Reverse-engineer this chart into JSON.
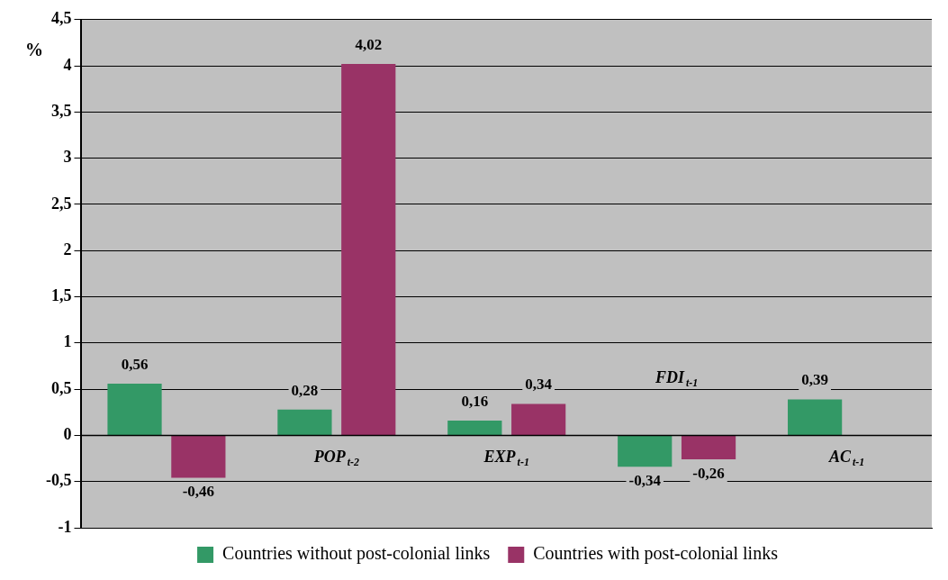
{
  "chart_data": {
    "type": "bar",
    "ylabel": "%",
    "categories": [
      null,
      "POP$_{t-2}$",
      "EXP$_{t-1}$",
      "FDI$_{t-1}$",
      "AC$_{t-1}$"
    ],
    "series": [
      {
        "name": "Countries without post-colonial links",
        "color": "#339966",
        "values": [
          0.56,
          0.28,
          0.16,
          -0.34,
          0.39
        ],
        "value_labels": [
          "0,56",
          "0,28",
          "0,16",
          "-0,34",
          "0,39"
        ]
      },
      {
        "name": "Countries with post-colonial links",
        "color": "#993366",
        "values": [
          -0.46,
          4.02,
          0.34,
          -0.26,
          null
        ],
        "value_labels": [
          "-0,46",
          "4,02",
          "0,34",
          "-0,26",
          null
        ]
      }
    ],
    "ylim": [
      -1,
      4.5
    ],
    "yticks": [
      {
        "value": -1,
        "label": "-1"
      },
      {
        "value": -0.5,
        "label": "-0,5"
      },
      {
        "value": 0,
        "label": "0"
      },
      {
        "value": 0.5,
        "label": "0,5"
      },
      {
        "value": 1,
        "label": "1"
      },
      {
        "value": 1.5,
        "label": "1,5"
      },
      {
        "value": 2,
        "label": "2"
      },
      {
        "value": 2.5,
        "label": "2,5"
      },
      {
        "value": 3,
        "label": "3"
      },
      {
        "value": 3.5,
        "label": "3,5"
      },
      {
        "value": 4,
        "label": "4"
      },
      {
        "value": 4.5,
        "label": "4,5"
      }
    ],
    "grid": "y",
    "legend": "bottom"
  }
}
